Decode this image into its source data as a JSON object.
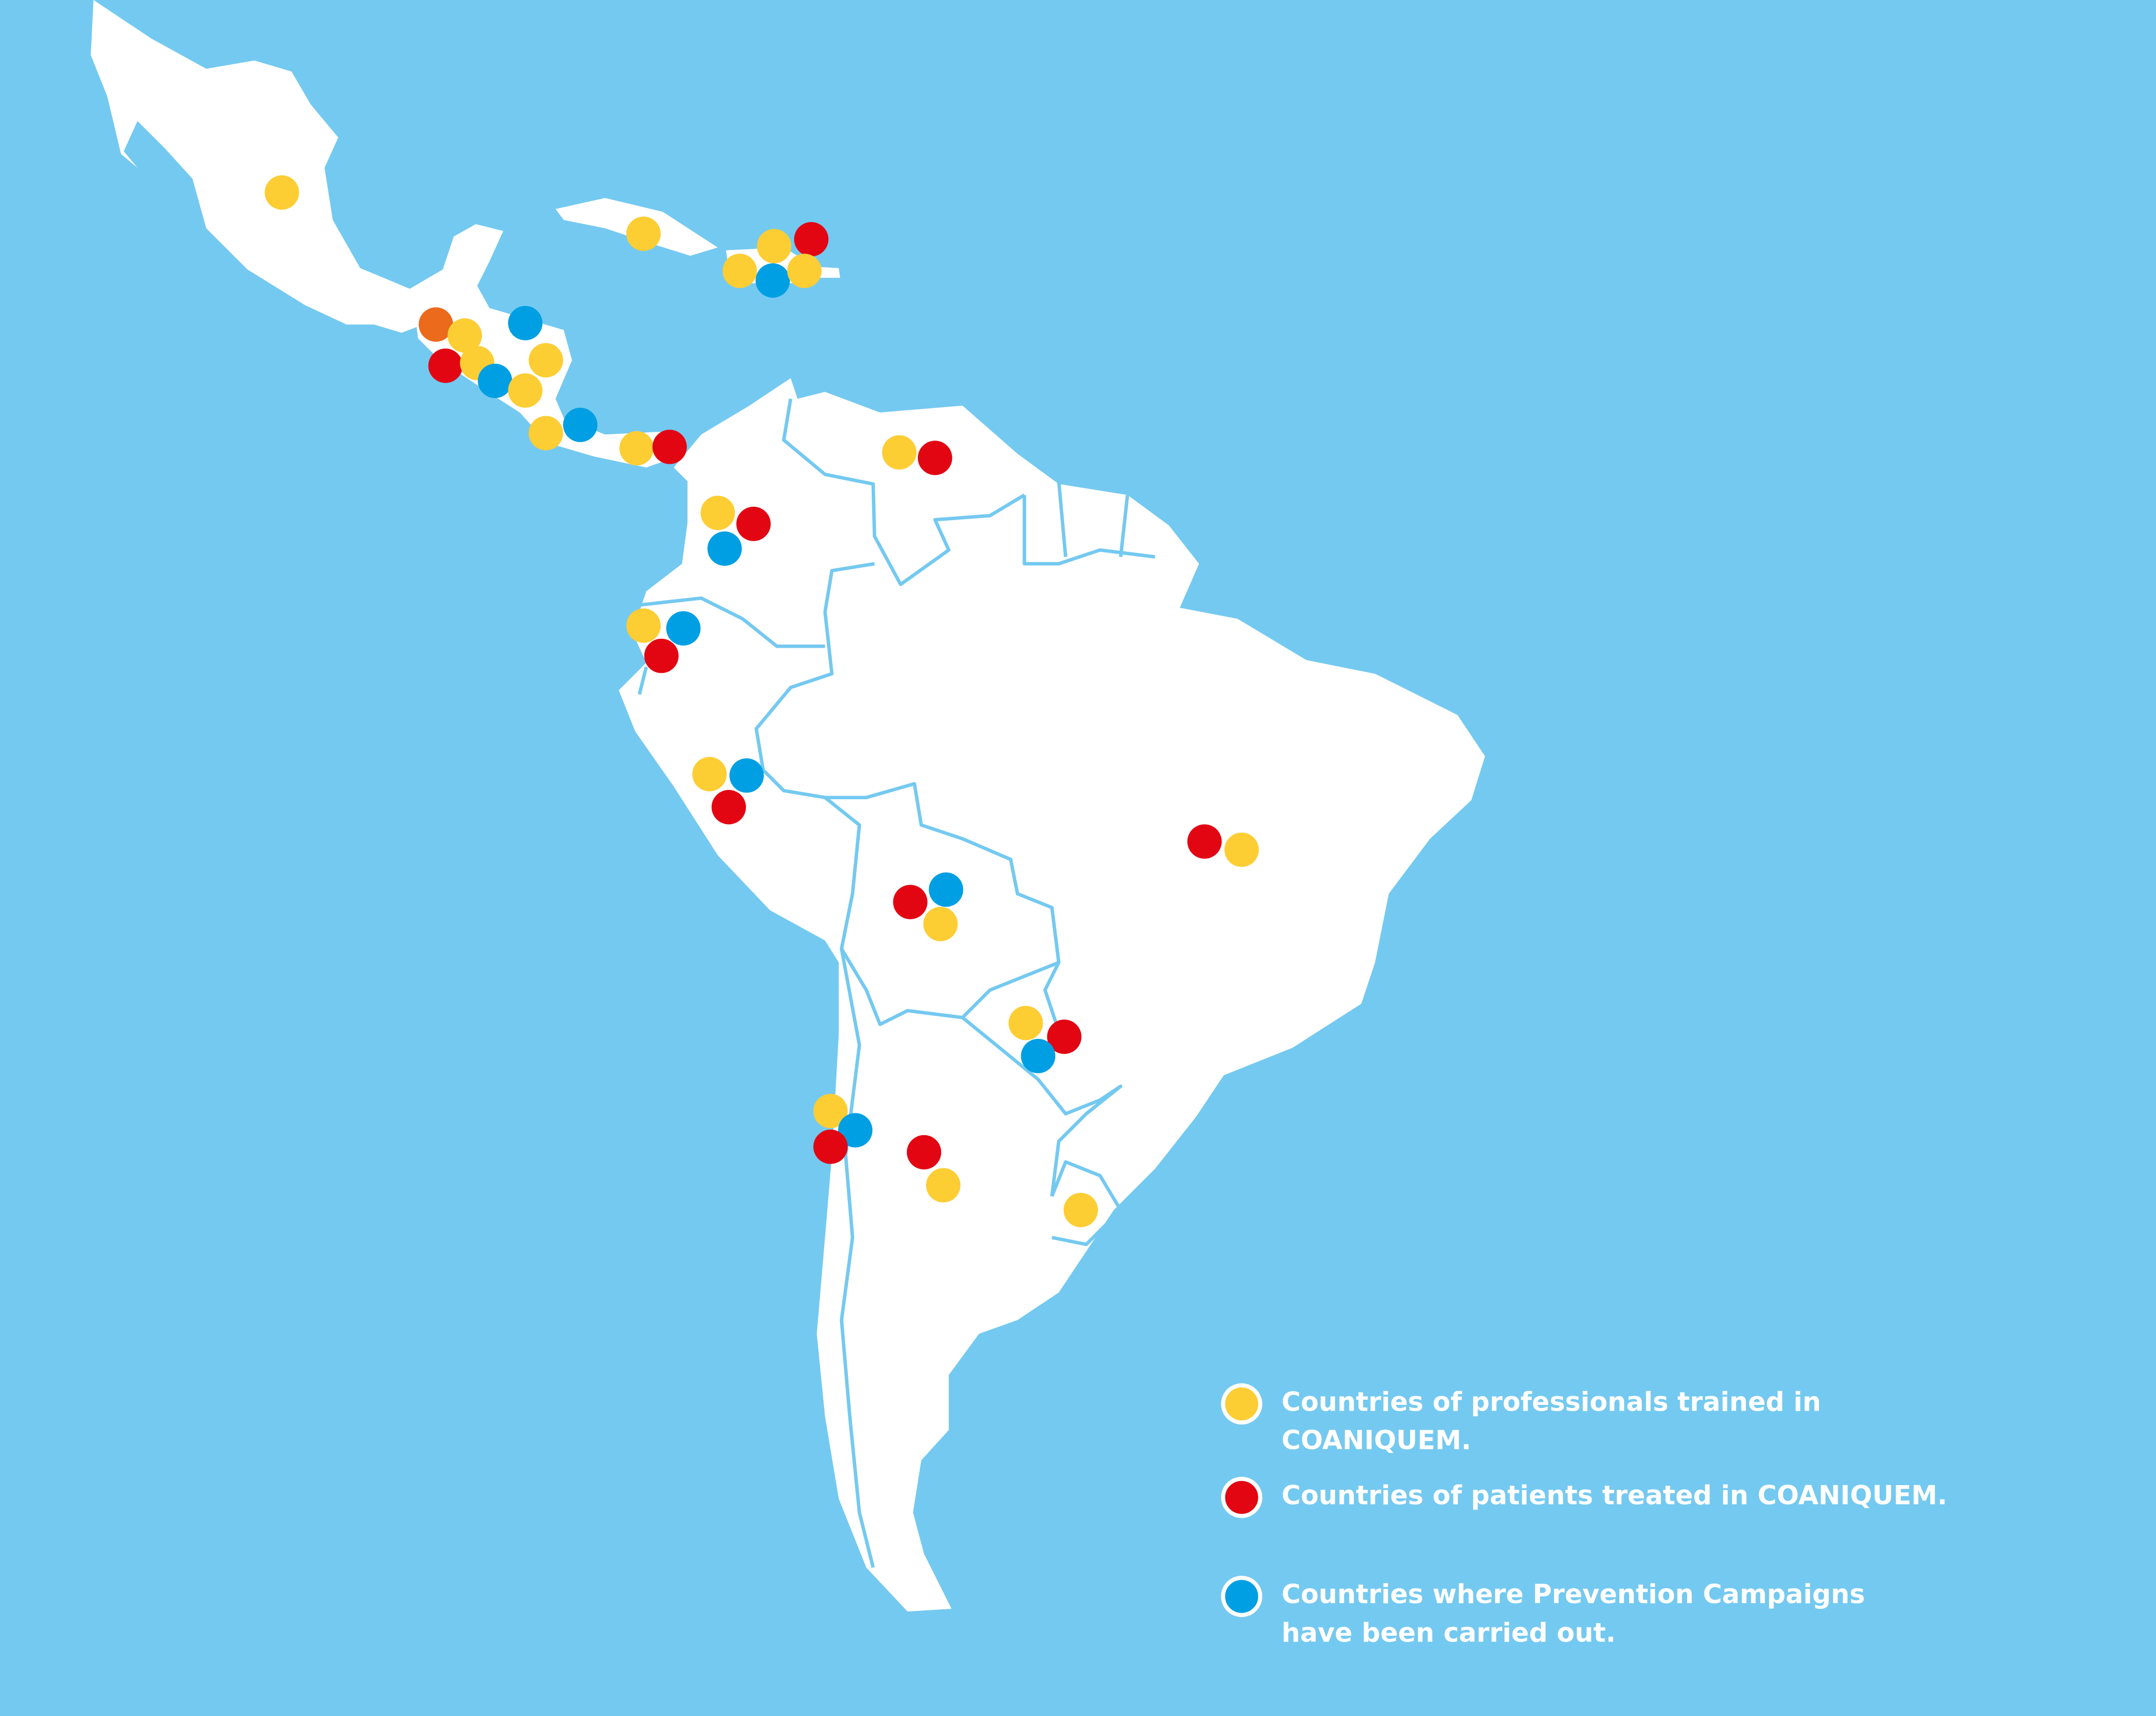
{
  "colors": {
    "ocean": "#74C9F0",
    "land": "#FFFFFF",
    "professionals_trained": "#FDCD34",
    "patients_treated": "#E20613",
    "prevention_campaigns": "#009FE3",
    "other": "#EB6A1C"
  },
  "legend": [
    {
      "key": "professionals_trained",
      "label": "Countries of professionals trained in COANIQUEM."
    },
    {
      "key": "patients_treated",
      "label": "Countries of patients treated in COANIQUEM."
    },
    {
      "key": "prevention_campaigns",
      "label": "Countries where Prevention Campaigns have been carried out."
    }
  ],
  "markers": [
    {
      "country": "Mexico",
      "types": [
        "professionals_trained"
      ]
    },
    {
      "country": "Cuba",
      "types": [
        "professionals_trained"
      ]
    },
    {
      "country": "Dominican Republic / Caribbean",
      "types": [
        "professionals_trained",
        "patients_treated",
        "professionals_trained",
        "prevention_campaigns",
        "professionals_trained"
      ]
    },
    {
      "country": "Central America",
      "types": [
        "other",
        "professionals_trained",
        "prevention_campaigns",
        "patients_treated",
        "professionals_trained",
        "prevention_campaigns",
        "professionals_trained",
        "professionals_trained",
        "professionals_trained",
        "prevention_campaigns"
      ]
    },
    {
      "country": "Panama",
      "types": [
        "professionals_trained",
        "patients_treated"
      ]
    },
    {
      "country": "Venezuela",
      "types": [
        "professionals_trained",
        "patients_treated"
      ]
    },
    {
      "country": "Colombia",
      "types": [
        "professionals_trained",
        "patients_treated",
        "prevention_campaigns"
      ]
    },
    {
      "country": "Ecuador",
      "types": [
        "professionals_trained",
        "prevention_campaigns",
        "patients_treated"
      ]
    },
    {
      "country": "Peru",
      "types": [
        "professionals_trained",
        "prevention_campaigns",
        "patients_treated"
      ]
    },
    {
      "country": "Bolivia",
      "types": [
        "patients_treated",
        "prevention_campaigns",
        "professionals_trained"
      ]
    },
    {
      "country": "Brazil",
      "types": [
        "patients_treated",
        "professionals_trained"
      ]
    },
    {
      "country": "Paraguay",
      "types": [
        "professionals_trained",
        "patients_treated",
        "prevention_campaigns"
      ]
    },
    {
      "country": "Chile",
      "types": [
        "professionals_trained",
        "prevention_campaigns",
        "patients_treated"
      ]
    },
    {
      "country": "Argentina",
      "types": [
        "patients_treated",
        "professionals_trained"
      ]
    },
    {
      "country": "Uruguay",
      "types": [
        "professionals_trained"
      ]
    }
  ]
}
